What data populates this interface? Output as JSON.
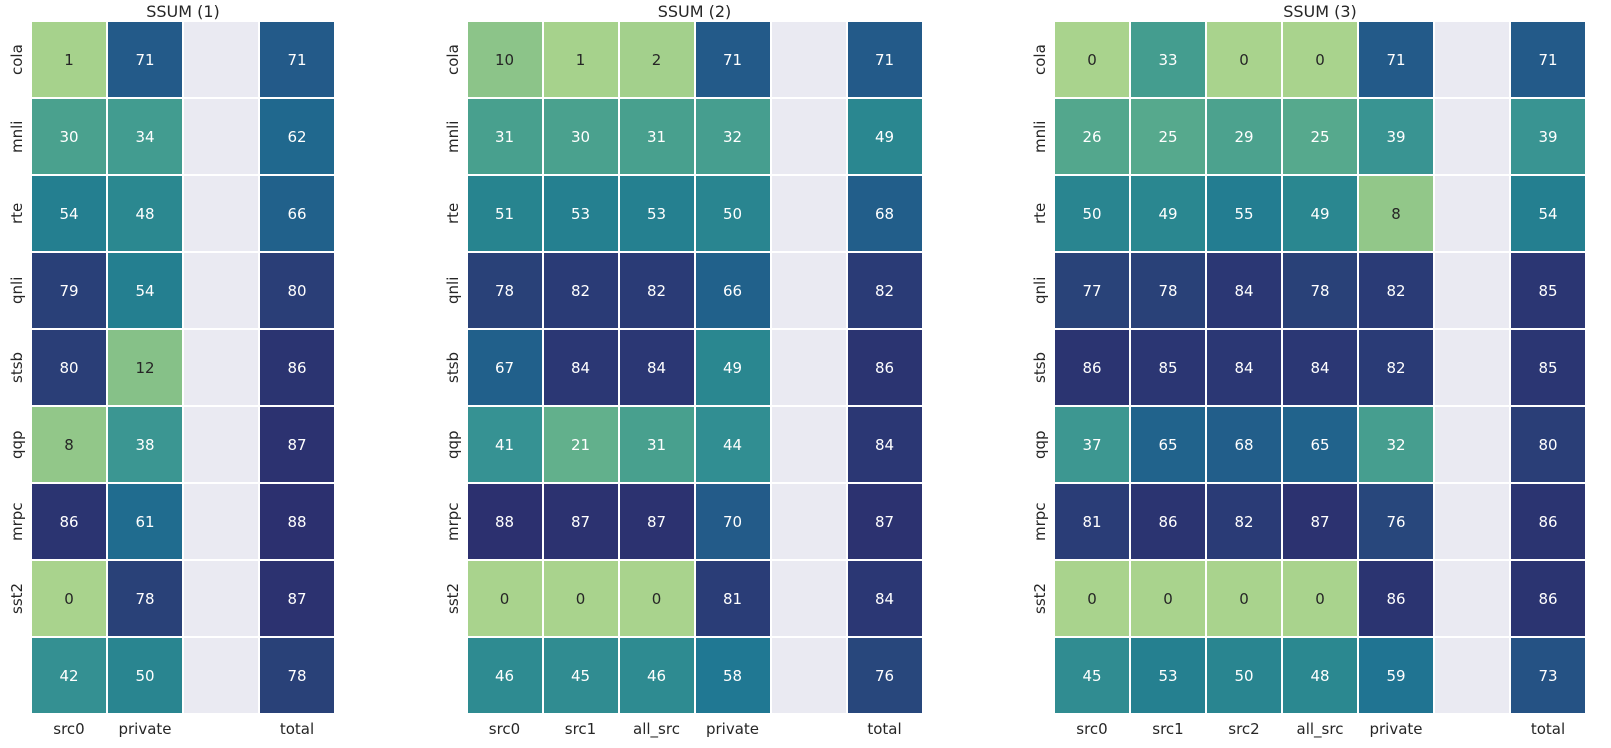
{
  "figure": {
    "background": "#ffffff",
    "label_color": "#262626"
  },
  "colormap": {
    "name": "crest-like",
    "domain_min": 0,
    "domain_max": 88,
    "nan_color": "#eaeaf2",
    "text_dark": "#262626",
    "text_light": "#ffffff",
    "luminance_threshold": 0.408,
    "stops": [
      [
        0,
        "#a9d38d"
      ],
      [
        7,
        "#95c989"
      ],
      [
        13,
        "#83bf88"
      ],
      [
        21,
        "#62b08c"
      ],
      [
        27,
        "#50a58d"
      ],
      [
        33,
        "#449d8f"
      ],
      [
        40,
        "#379393"
      ],
      [
        46,
        "#2e8b91"
      ],
      [
        52,
        "#26828f"
      ],
      [
        58,
        "#207893"
      ],
      [
        62,
        "#20688e"
      ],
      [
        66,
        "#21618b"
      ],
      [
        71,
        "#235a89"
      ],
      [
        77,
        "#294379"
      ],
      [
        82,
        "#2a3b76"
      ],
      [
        88,
        "#2c306f"
      ]
    ]
  },
  "chart_data": [
    {
      "type": "heatmap",
      "title": "SSUM (1)",
      "rows": [
        "cola",
        "mnli",
        "rte",
        "qnli",
        "stsb",
        "qqp",
        "mrpc",
        "sst2",
        ""
      ],
      "columns": [
        "src0",
        "private",
        "",
        "total"
      ],
      "values": [
        [
          1,
          71,
          null,
          71
        ],
        [
          30,
          34,
          null,
          62
        ],
        [
          54,
          48,
          null,
          66
        ],
        [
          79,
          54,
          null,
          80
        ],
        [
          80,
          12,
          null,
          86
        ],
        [
          8,
          38,
          null,
          87
        ],
        [
          86,
          61,
          null,
          88
        ],
        [
          0,
          78,
          null,
          87
        ],
        [
          42,
          50,
          null,
          78
        ]
      ]
    },
    {
      "type": "heatmap",
      "title": "SSUM (2)",
      "rows": [
        "cola",
        "mnli",
        "rte",
        "qnli",
        "stsb",
        "qqp",
        "mrpc",
        "sst2",
        ""
      ],
      "columns": [
        "src0",
        "src1",
        "all_src",
        "private",
        "",
        "total"
      ],
      "values": [
        [
          10,
          1,
          2,
          71,
          null,
          71
        ],
        [
          31,
          30,
          31,
          32,
          null,
          49
        ],
        [
          51,
          53,
          53,
          50,
          null,
          68
        ],
        [
          78,
          82,
          82,
          66,
          null,
          82
        ],
        [
          67,
          84,
          84,
          49,
          null,
          86
        ],
        [
          41,
          21,
          31,
          44,
          null,
          84
        ],
        [
          88,
          87,
          87,
          70,
          null,
          87
        ],
        [
          0,
          0,
          0,
          81,
          null,
          84
        ],
        [
          46,
          45,
          46,
          58,
          null,
          76
        ]
      ]
    },
    {
      "type": "heatmap",
      "title": "SSUM (3)",
      "rows": [
        "cola",
        "mnli",
        "rte",
        "qnli",
        "stsb",
        "qqp",
        "mrpc",
        "sst2",
        ""
      ],
      "columns": [
        "src0",
        "src1",
        "src2",
        "all_src",
        "private",
        "",
        "total"
      ],
      "values": [
        [
          0,
          33,
          0,
          0,
          71,
          null,
          71
        ],
        [
          26,
          25,
          29,
          25,
          39,
          null,
          39
        ],
        [
          50,
          49,
          55,
          49,
          8,
          null,
          54
        ],
        [
          77,
          78,
          84,
          78,
          82,
          null,
          85
        ],
        [
          86,
          85,
          84,
          84,
          82,
          null,
          85
        ],
        [
          37,
          65,
          68,
          65,
          32,
          null,
          80
        ],
        [
          81,
          86,
          82,
          87,
          76,
          null,
          86
        ],
        [
          0,
          0,
          0,
          0,
          86,
          null,
          86
        ],
        [
          45,
          53,
          50,
          48,
          59,
          null,
          73
        ]
      ]
    }
  ]
}
